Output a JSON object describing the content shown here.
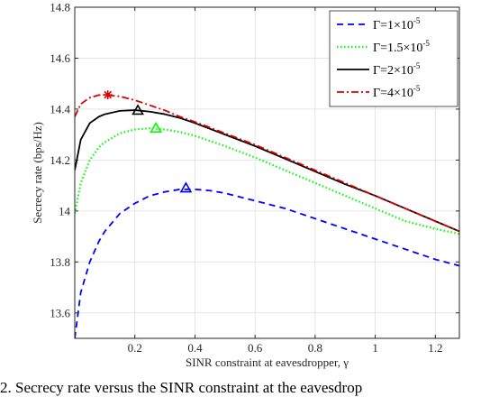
{
  "caption": "2.   Secrecy rate versus the SINR constraint at the eavesdrop",
  "chart_data": {
    "type": "line",
    "xlabel": "SINR constraint at eavesdropper, γ",
    "ylabel": "Secrecy rate (bps/Hz)",
    "xlim": [
      0,
      1.28
    ],
    "ylim": [
      13.5,
      14.8
    ],
    "xticks": [
      0.2,
      0.4,
      0.6,
      0.8,
      1,
      1.2
    ],
    "xtick_labels": [
      "0.2",
      "0.4",
      "0.6",
      "0.8",
      "1",
      "1.2"
    ],
    "yticks": [
      13.6,
      13.8,
      14,
      14.2,
      14.4,
      14.6,
      14.8
    ],
    "ytick_labels": [
      "13.6",
      "13.8",
      "14",
      "14.2",
      "14.4",
      "14.6",
      "14.8"
    ],
    "grid": true,
    "legend_position": "top-right",
    "series": [
      {
        "name": "Γ=1×10^-5",
        "legend_main": "Γ=1×10",
        "legend_exp": "-5",
        "color": "#0000ff",
        "style": "dashed",
        "marker": "triangle",
        "marker_point": [
          0.37,
          14.09
        ],
        "x": [
          0,
          0.02,
          0.05,
          0.08,
          0.1,
          0.15,
          0.2,
          0.25,
          0.3,
          0.35,
          0.4,
          0.45,
          0.5,
          0.6,
          0.7,
          0.8,
          0.9,
          1.0,
          1.1,
          1.2,
          1.28
        ],
        "y": [
          13.5,
          13.68,
          13.8,
          13.88,
          13.92,
          13.99,
          14.03,
          14.06,
          14.075,
          14.085,
          14.085,
          14.08,
          14.07,
          14.04,
          14.01,
          13.97,
          13.93,
          13.89,
          13.85,
          13.81,
          13.785
        ]
      },
      {
        "name": "Γ=1.5×10^-5",
        "legend_main": "Γ=1.5×10",
        "legend_exp": "-5",
        "color": "#00ff00",
        "style": "dotted",
        "marker": "triangle",
        "marker_point": [
          0.27,
          14.325
        ],
        "x": [
          0,
          0.02,
          0.05,
          0.08,
          0.1,
          0.15,
          0.2,
          0.25,
          0.3,
          0.35,
          0.4,
          0.5,
          0.6,
          0.7,
          0.8,
          0.9,
          1.0,
          1.1,
          1.2,
          1.28
        ],
        "y": [
          13.99,
          14.11,
          14.2,
          14.25,
          14.27,
          14.305,
          14.32,
          14.325,
          14.32,
          14.31,
          14.295,
          14.255,
          14.21,
          14.16,
          14.11,
          14.06,
          14.01,
          13.96,
          13.93,
          13.91
        ]
      },
      {
        "name": "Γ=2×10^-5",
        "legend_main": "Γ=2×10",
        "legend_exp": "-5",
        "color": "#000000",
        "style": "solid",
        "marker": "triangle",
        "marker_point": [
          0.21,
          14.395
        ],
        "x": [
          0,
          0.02,
          0.05,
          0.08,
          0.1,
          0.15,
          0.2,
          0.25,
          0.3,
          0.35,
          0.4,
          0.5,
          0.6,
          0.7,
          0.8,
          0.9,
          1.0,
          1.1,
          1.2,
          1.28
        ],
        "y": [
          14.16,
          14.28,
          14.345,
          14.37,
          14.38,
          14.393,
          14.396,
          14.39,
          14.38,
          14.365,
          14.345,
          14.3,
          14.255,
          14.205,
          14.155,
          14.105,
          14.06,
          14.01,
          13.96,
          13.92
        ]
      },
      {
        "name": "Γ=4×10^-5",
        "legend_main": "Γ=4×10",
        "legend_exp": "-5",
        "color": "#dd0000",
        "style": "dashdot",
        "marker": "star",
        "marker_point": [
          0.11,
          14.456
        ],
        "x": [
          0,
          0.02,
          0.05,
          0.08,
          0.1,
          0.15,
          0.2,
          0.25,
          0.3,
          0.35,
          0.4,
          0.5,
          0.6,
          0.7,
          0.8,
          0.9,
          1.0,
          1.1,
          1.2,
          1.28
        ],
        "y": [
          14.37,
          14.42,
          14.445,
          14.455,
          14.456,
          14.45,
          14.435,
          14.415,
          14.395,
          14.37,
          14.35,
          14.305,
          14.26,
          14.21,
          14.16,
          14.11,
          14.06,
          14.01,
          13.96,
          13.92
        ]
      }
    ]
  }
}
